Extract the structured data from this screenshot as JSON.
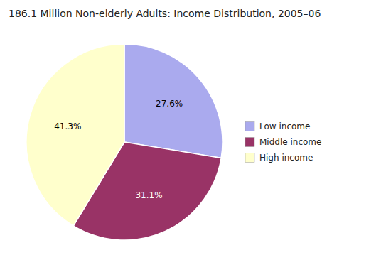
{
  "chart_data": {
    "type": "pie",
    "title": "186.1 Million Non-elderly Adults: Income Distribution, 2005–06",
    "categories": [
      "Low income",
      "Middle income",
      "High income"
    ],
    "values": [
      27.6,
      31.1,
      41.3
    ],
    "value_labels": [
      "27.6%",
      "31.1%",
      "41.3%"
    ],
    "colors": [
      "#aaaaee",
      "#993366",
      "#ffffcc"
    ],
    "data_labels": true,
    "legend": "right"
  }
}
